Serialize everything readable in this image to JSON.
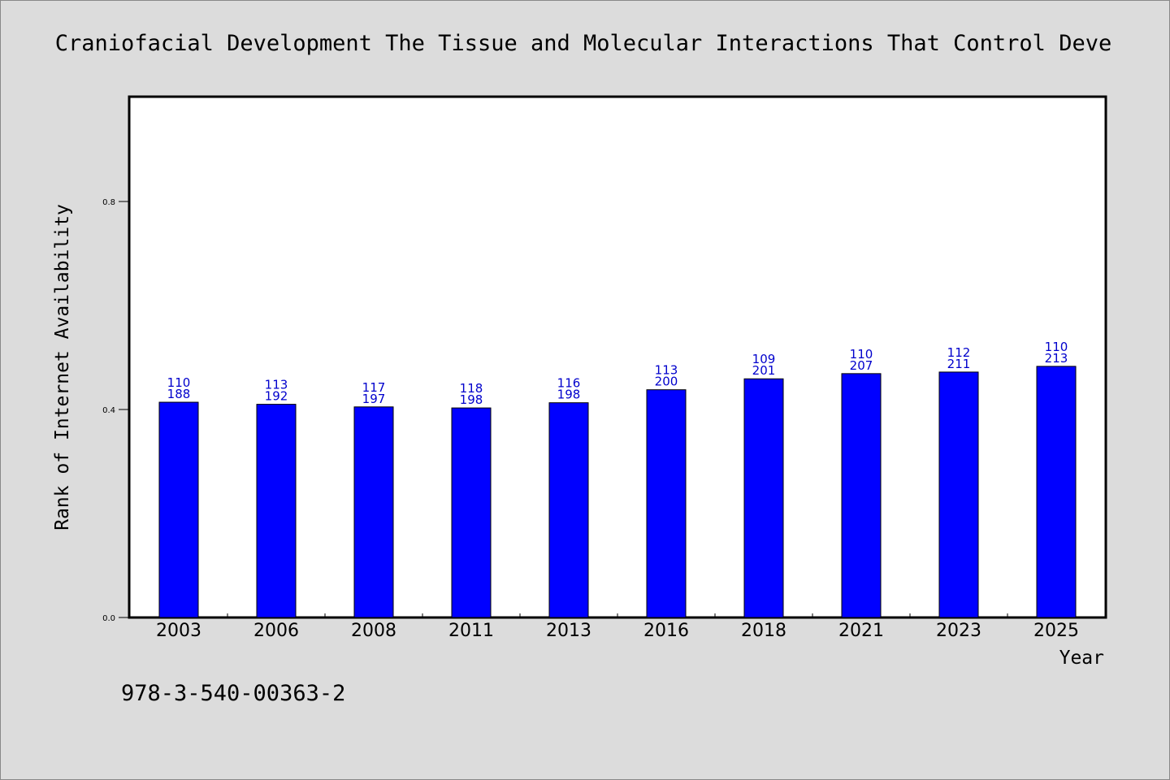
{
  "chart_data": {
    "type": "bar",
    "title": "Craniofacial Development The Tissue and Molecular Interactions That Control Deve",
    "xlabel": "Year",
    "ylabel": "Rank of Internet Availability",
    "ylim": [
      0,
      1.0
    ],
    "yticks": [
      0.0,
      0.4,
      0.8
    ],
    "ytick_labels": [
      "0.0",
      "0.4",
      "0.8"
    ],
    "categories": [
      "2003",
      "2006",
      "2008",
      "2011",
      "2013",
      "2016",
      "2018",
      "2021",
      "2023",
      "2025"
    ],
    "values": [
      0.414,
      0.41,
      0.405,
      0.403,
      0.413,
      0.438,
      0.459,
      0.469,
      0.472,
      0.483
    ],
    "labels_top": [
      "110",
      "113",
      "117",
      "118",
      "116",
      "113",
      "109",
      "110",
      "112",
      "110"
    ],
    "labels_bottom": [
      "188",
      "192",
      "197",
      "198",
      "198",
      "200",
      "201",
      "207",
      "211",
      "213"
    ],
    "bar_color": "#0000ff",
    "label_color": "#0000cc",
    "grid": false,
    "legend": "none"
  },
  "footer": {
    "isbn": "978-3-540-00363-2"
  }
}
